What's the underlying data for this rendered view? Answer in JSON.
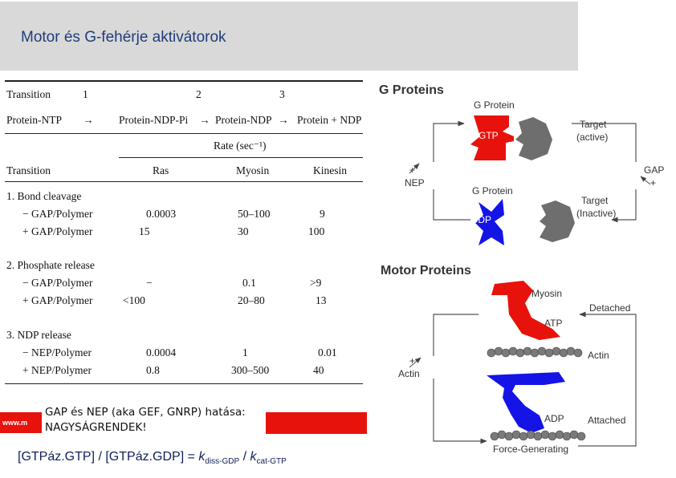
{
  "header": {
    "title": "Motor és G-fehérje aktivátorok"
  },
  "table": {
    "row1": {
      "label": "Transition",
      "n1": "1",
      "n2": "2",
      "n3": "3"
    },
    "row2": {
      "s1": "Protein-NTP",
      "a1": "→",
      "s2": "Protein-NDP-Pi",
      "a2": "→",
      "s3": "Protein-NDP",
      "a3": "→",
      "s4": "Protein + NDP"
    },
    "rate_label": "Rate (sec⁻¹)",
    "col_headers": {
      "transition": "Transition",
      "ras": "Ras",
      "myosin": "Myosin",
      "kinesin": "Kinesin"
    },
    "sections": [
      {
        "title": "1. Bond cleavage",
        "rows": [
          {
            "label": "− GAP/Polymer",
            "ras": "0.0003",
            "myosin": "50–100",
            "kinesin": "9"
          },
          {
            "label": "+ GAP/Polymer",
            "ras": "15",
            "myosin": "30",
            "kinesin": "100"
          }
        ]
      },
      {
        "title": "2. Phosphate release",
        "rows": [
          {
            "label": "− GAP/Polymer",
            "ras": "−",
            "myosin": "0.1",
            "kinesin": ">9"
          },
          {
            "label": "+ GAP/Polymer",
            "ras": "<100",
            "myosin": "20–80",
            "kinesin": "13"
          }
        ]
      },
      {
        "title": "3. NDP release",
        "rows": [
          {
            "label": "− NEP/Polymer",
            "ras": "0.0004",
            "myosin": "1",
            "kinesin": "0.01"
          },
          {
            "label": "+ NEP/Polymer",
            "ras": "0.8",
            "myosin": "300–500",
            "kinesin": "40"
          }
        ]
      }
    ]
  },
  "gproteins": {
    "heading": "G Proteins",
    "gprotein_top": "G Protein",
    "gtp": "GTP",
    "target_active": [
      "Target",
      "(active)"
    ],
    "plus": "+",
    "nep": "NEP",
    "gap": "GAP",
    "gap_plus": "+",
    "gprotein_bottom": "G Protein",
    "gdp": "GDP",
    "target_inactive": [
      "Target",
      "(Inactive)"
    ]
  },
  "motor": {
    "heading": "Motor  Proteins",
    "myosin": "Myosin",
    "atp": "ATP",
    "detached": "Detached",
    "actin": "Actin",
    "plus": "+",
    "plus_actin": "Actin",
    "adp": "ADP",
    "attached": "Attached",
    "force": "Force-Generating"
  },
  "note": {
    "line1": "GAP és NEP (aka GEF, GNRP) hatása:",
    "line2": "NAGYSÁGRENDEK!"
  },
  "formula": {
    "text": "[GTPáz.GTP] / [GTPáz.GDP] = ",
    "k1": "k",
    "sub1": "diss-GDP",
    "sep": " / ",
    "k2": "k",
    "sub2": "cat-GTP"
  },
  "logo": {
    "text": "www.m"
  },
  "colors": {
    "red": "#e8120c",
    "blue": "#1414e6",
    "gray": "#6e6e6e",
    "title": "#1f3d7a"
  }
}
